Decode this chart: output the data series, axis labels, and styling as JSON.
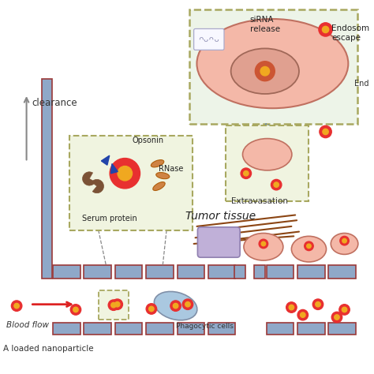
{
  "bg_color": "#ffffff",
  "vessel_color": "#8fa8c8",
  "vessel_border": "#9b3a3a",
  "cell_fill": "#f4b8a8",
  "cell_border": "#c07060",
  "nucleus_fill": "#e0a090",
  "nucleus_border": "#a06858",
  "nano_outer": "#e83030",
  "nano_inner": "#f0a820",
  "phago_fill": "#aac8e0",
  "phago_border": "#8090a8",
  "opsonin_color": "#2244aa",
  "serum_color": "#7b5236",
  "rnase_color": "#cc7733",
  "tumor_line_color": "#8B4513",
  "box_fill": "#f0f4e0",
  "box_edge": "#a8a860",
  "dna_color": "#aaaacc",
  "dna_border": "#888899",
  "arrow_red": "#dd2222",
  "arrow_blue": "#6688aa",
  "arrow_gray": "#888888",
  "tumor_text": "Tumor tissue",
  "extravasation_text": "Extravasation",
  "bloodflow_text": "Blood flow",
  "nanoparticle_text": "A loaded nanoparticle",
  "clearance_text": "clearance",
  "phagocytic_text": "Phagocytic cells",
  "opsonin_text": "Opsonin",
  "rnase_text": "RNase",
  "serum_text": "Serum protein",
  "sirna_text": "siRNA\nrelease",
  "endosome_text": "Endosom\nescape",
  "end_text": "End"
}
